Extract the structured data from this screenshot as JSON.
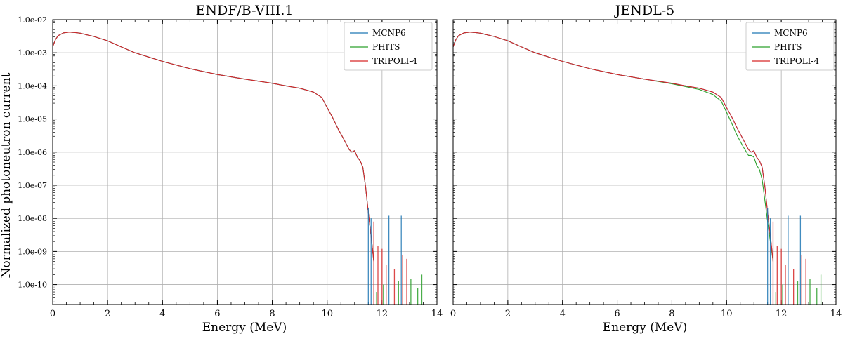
{
  "figure": {
    "ylabel": "Normalized photoneutron current"
  },
  "colors": {
    "MCNP6": "#1f77b4",
    "PHITS": "#2ca02c",
    "TRIPOLI-4": "#d62728",
    "grid": "#b0b0b0"
  },
  "chart_data": [
    {
      "type": "line",
      "title": "ENDF/B-VIII.1",
      "xlabel": "Energy (MeV)",
      "ylabel": "Normalized photoneutron current",
      "xlim": [
        0,
        14
      ],
      "ylim": [
        2.5e-11,
        0.01
      ],
      "yscale": "log",
      "legend": "top-right",
      "grid": true,
      "xticks": [
        0,
        2,
        4,
        6,
        8,
        10,
        12,
        14
      ],
      "yticks": [
        "1.0e-02",
        "1.0e-03",
        "1.0e-04",
        "1.0e-05",
        "1.0e-06",
        "1.0e-07",
        "1.0e-08",
        "1.0e-09",
        "1.0e-10"
      ],
      "x": [
        0.0,
        0.1,
        0.2,
        0.4,
        0.6,
        0.8,
        1.0,
        1.5,
        2.0,
        2.5,
        3.0,
        4.0,
        5.0,
        6.0,
        7.0,
        8.0,
        8.5,
        9.0,
        9.5,
        9.8,
        10.0,
        10.2,
        10.4,
        10.6,
        10.8,
        10.9,
        11.0,
        11.1,
        11.2,
        11.3,
        11.4,
        11.5,
        11.6,
        11.7
      ],
      "series": [
        {
          "name": "MCNP6",
          "values": [
            0.0015,
            0.0025,
            0.0033,
            0.004,
            0.0042,
            0.0041,
            0.0039,
            0.0031,
            0.0023,
            0.0015,
            0.001,
            0.00055,
            0.00033,
            0.00022,
            0.00016,
            0.00012,
            0.0001,
            8.5e-05,
            6.5e-05,
            4.5e-05,
            2.2e-05,
            1.1e-05,
            5e-06,
            2.5e-06,
            1.2e-06,
            1e-06,
            1.1e-06,
            7e-07,
            5.5e-07,
            3.5e-07,
            9e-08,
            1.5e-08,
            3e-09,
            5e-10
          ]
        },
        {
          "name": "PHITS",
          "values": [
            0.0015,
            0.0025,
            0.0033,
            0.004,
            0.0042,
            0.0041,
            0.0039,
            0.0031,
            0.0023,
            0.0015,
            0.001,
            0.00055,
            0.00033,
            0.00022,
            0.00016,
            0.00012,
            0.0001,
            8.5e-05,
            6.5e-05,
            4.5e-05,
            2.2e-05,
            1.1e-05,
            5e-06,
            2.5e-06,
            1.2e-06,
            1e-06,
            1.1e-06,
            7e-07,
            5.5e-07,
            3.5e-07,
            9e-08,
            1.5e-08,
            3e-09,
            5e-10
          ]
        },
        {
          "name": "TRIPOLI-4",
          "values": [
            0.0015,
            0.0025,
            0.0033,
            0.004,
            0.0042,
            0.0041,
            0.0039,
            0.0031,
            0.0023,
            0.0015,
            0.001,
            0.00055,
            0.00033,
            0.00022,
            0.00016,
            0.00012,
            0.0001,
            8.5e-05,
            6.5e-05,
            4.5e-05,
            2.2e-05,
            1.1e-05,
            5e-06,
            2.5e-06,
            1.2e-06,
            1e-06,
            1.1e-06,
            7e-07,
            5.5e-07,
            3.5e-07,
            9e-08,
            1.5e-08,
            3e-09,
            5e-10
          ]
        }
      ],
      "spikes": [
        {
          "series": "MCNP6",
          "x": 11.5,
          "y": 2e-08
        },
        {
          "series": "MCNP6",
          "x": 11.6,
          "y": 1e-08
        },
        {
          "series": "MCNP6",
          "x": 12.25,
          "y": 1.2e-08
        },
        {
          "series": "MCNP6",
          "x": 12.7,
          "y": 1.2e-08
        },
        {
          "series": "TRIPOLI-4",
          "x": 11.7,
          "y": 8e-09
        },
        {
          "series": "TRIPOLI-4",
          "x": 11.85,
          "y": 1.5e-09
        },
        {
          "series": "TRIPOLI-4",
          "x": 12.0,
          "y": 1.2e-09
        },
        {
          "series": "TRIPOLI-4",
          "x": 12.15,
          "y": 4e-10
        },
        {
          "series": "TRIPOLI-4",
          "x": 12.45,
          "y": 3e-10
        },
        {
          "series": "TRIPOLI-4",
          "x": 12.75,
          "y": 8e-10
        },
        {
          "series": "TRIPOLI-4",
          "x": 12.9,
          "y": 6e-10
        },
        {
          "series": "PHITS",
          "x": 11.8,
          "y": 6e-11
        },
        {
          "series": "PHITS",
          "x": 12.05,
          "y": 1e-10
        },
        {
          "series": "PHITS",
          "x": 12.6,
          "y": 1.3e-10
        },
        {
          "series": "PHITS",
          "x": 13.05,
          "y": 1.5e-10
        },
        {
          "series": "PHITS",
          "x": 13.3,
          "y": 8e-11
        },
        {
          "series": "PHITS",
          "x": 13.45,
          "y": 2e-10
        }
      ]
    },
    {
      "type": "line",
      "title": "JENDL-5",
      "xlabel": "Energy (MeV)",
      "ylabel": "",
      "xlim": [
        0,
        14
      ],
      "ylim": [
        2.5e-11,
        0.01
      ],
      "yscale": "log",
      "legend": "top-right",
      "grid": true,
      "xticks": [
        0,
        2,
        4,
        6,
        8,
        10,
        12,
        14
      ],
      "yticks": [],
      "x": [
        0.0,
        0.1,
        0.2,
        0.4,
        0.6,
        0.8,
        1.0,
        1.5,
        2.0,
        2.5,
        3.0,
        4.0,
        5.0,
        6.0,
        7.0,
        8.0,
        8.5,
        9.0,
        9.5,
        9.8,
        10.0,
        10.2,
        10.4,
        10.6,
        10.8,
        10.9,
        11.0,
        11.1,
        11.2,
        11.3,
        11.4,
        11.5,
        11.6,
        11.7
      ],
      "series": [
        {
          "name": "MCNP6",
          "values": [
            0.0015,
            0.0025,
            0.0033,
            0.004,
            0.0042,
            0.0041,
            0.0039,
            0.0031,
            0.0023,
            0.0015,
            0.001,
            0.00055,
            0.00033,
            0.00022,
            0.00016,
            0.00012,
            0.0001,
            8.5e-05,
            6.5e-05,
            4.5e-05,
            2.2e-05,
            1.1e-05,
            5e-06,
            2.5e-06,
            1.2e-06,
            1e-06,
            1.1e-06,
            7e-07,
            5.5e-07,
            3.5e-07,
            9e-08,
            1.5e-08,
            3e-09,
            5e-10
          ]
        },
        {
          "name": "PHITS",
          "values": [
            0.0015,
            0.0025,
            0.0033,
            0.004,
            0.0042,
            0.0041,
            0.0039,
            0.0031,
            0.0023,
            0.0015,
            0.001,
            0.00055,
            0.00033,
            0.00022,
            0.00016,
            0.000115,
            9.5e-05,
            7.8e-05,
            5.5e-05,
            3.5e-05,
            1.6e-05,
            7e-06,
            3e-06,
            1.5e-06,
            8e-07,
            8e-07,
            7e-07,
            4e-07,
            3e-07,
            1.5e-07,
            3.5e-08,
            8e-09,
            2e-09,
            5e-10
          ]
        },
        {
          "name": "TRIPOLI-4",
          "values": [
            0.0015,
            0.0025,
            0.0033,
            0.004,
            0.0042,
            0.0041,
            0.0039,
            0.0031,
            0.0023,
            0.0015,
            0.001,
            0.00055,
            0.00033,
            0.00022,
            0.00016,
            0.00012,
            0.0001,
            8.5e-05,
            6.5e-05,
            4.5e-05,
            2.2e-05,
            1.1e-05,
            5e-06,
            2.5e-06,
            1.2e-06,
            1e-06,
            1.1e-06,
            7e-07,
            5.5e-07,
            3.5e-07,
            9e-08,
            1.5e-08,
            3e-09,
            5e-10
          ]
        }
      ],
      "spikes": [
        {
          "series": "MCNP6",
          "x": 11.5,
          "y": 2e-08
        },
        {
          "series": "MCNP6",
          "x": 11.6,
          "y": 1e-08
        },
        {
          "series": "MCNP6",
          "x": 12.25,
          "y": 1.2e-08
        },
        {
          "series": "MCNP6",
          "x": 12.7,
          "y": 1.2e-08
        },
        {
          "series": "TRIPOLI-4",
          "x": 11.7,
          "y": 8e-09
        },
        {
          "series": "TRIPOLI-4",
          "x": 11.85,
          "y": 1.5e-09
        },
        {
          "series": "TRIPOLI-4",
          "x": 12.0,
          "y": 1.2e-09
        },
        {
          "series": "TRIPOLI-4",
          "x": 12.15,
          "y": 4e-10
        },
        {
          "series": "TRIPOLI-4",
          "x": 12.45,
          "y": 3e-10
        },
        {
          "series": "TRIPOLI-4",
          "x": 12.75,
          "y": 8e-10
        },
        {
          "series": "TRIPOLI-4",
          "x": 12.9,
          "y": 6e-10
        },
        {
          "series": "PHITS",
          "x": 11.8,
          "y": 6e-11
        },
        {
          "series": "PHITS",
          "x": 12.05,
          "y": 1e-10
        },
        {
          "series": "PHITS",
          "x": 12.6,
          "y": 1.3e-10
        },
        {
          "series": "PHITS",
          "x": 13.05,
          "y": 1.5e-10
        },
        {
          "series": "PHITS",
          "x": 13.3,
          "y": 8e-11
        },
        {
          "series": "PHITS",
          "x": 13.45,
          "y": 2e-10
        }
      ]
    }
  ]
}
